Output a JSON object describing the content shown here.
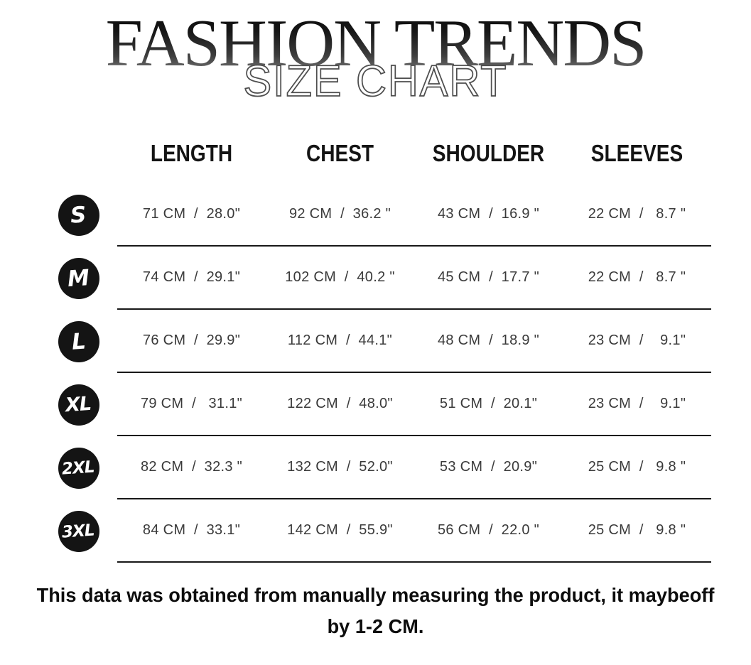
{
  "title": "FASHION TRENDS",
  "subtitle": "SIZE CHART",
  "table": {
    "columns": [
      "LENGTH",
      "CHEST",
      "SHOULDER",
      "SLEEVES"
    ],
    "rows": [
      {
        "size": "S",
        "length": "71 CM  /  28.0\"",
        "chest": "92 CM  /  36.2 \"",
        "shoulder": "43 CM  /  16.9 \"",
        "sleeves": "22 CM  /   8.7 \""
      },
      {
        "size": "M",
        "length": "74 CM  /  29.1\"",
        "chest": "102 CM  /  40.2 \"",
        "shoulder": "45 CM  /  17.7 \"",
        "sleeves": "22 CM  /   8.7 \""
      },
      {
        "size": "L",
        "length": "76 CM  /  29.9\"",
        "chest": "112 CM  /  44.1\"",
        "shoulder": "48 CM  /  18.9 \"",
        "sleeves": "23 CM  /    9.1\""
      },
      {
        "size": "XL",
        "length": "79 CM  /   31.1\"",
        "chest": "122 CM  /  48.0\"",
        "shoulder": "51 CM  /  20.1\"",
        "sleeves": "23 CM  /    9.1\""
      },
      {
        "size": "2XL",
        "length": "82 CM  /  32.3 \"",
        "chest": "132 CM  /  52.0\"",
        "shoulder": "53 CM  /  20.9\"",
        "sleeves": "25 CM  /   9.8 \""
      },
      {
        "size": "3XL",
        "length": "84 CM  /  33.1\"",
        "chest": "142 CM  /  55.9\"",
        "shoulder": "56 CM  /  22.0 \"",
        "sleeves": "25 CM  /   9.8 \""
      }
    ]
  },
  "footer": {
    "note_line1": "This data was obtained from manually measuring the product, it maybeoff",
    "note_line2": "by 1-2 CM."
  },
  "colors": {
    "badge_black": "#141414",
    "divider": "#181818",
    "cell_text": "#3a3a3a",
    "title_gradient_top": "#0b0b0b",
    "title_gradient_bottom": "#7d7d7d",
    "subtitle_outline": "#4e4e4e"
  }
}
